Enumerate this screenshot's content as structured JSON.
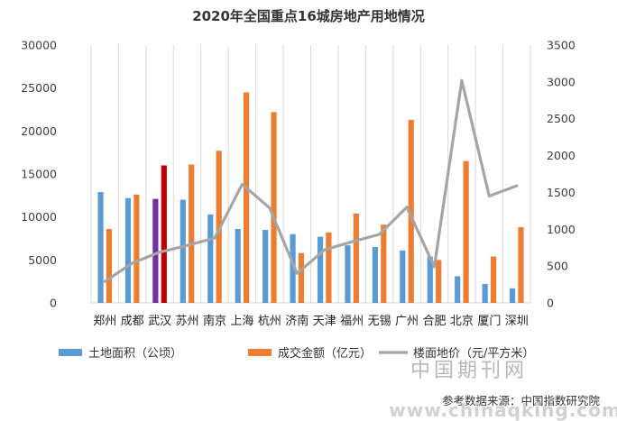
{
  "chart_data": {
    "type": "bar",
    "title": "2020年全国重点16城房地产用地情况",
    "categories": [
      "郑州",
      "成都",
      "武汉",
      "苏州",
      "南京",
      "上海",
      "杭州",
      "济南",
      "天津",
      "福州",
      "无锡",
      "广州",
      "合肥",
      "北京",
      "厦门",
      "深圳"
    ],
    "series": [
      {
        "name": "土地面积（公顷）",
        "type": "bar",
        "axis": "left",
        "color": "#5b9bd5",
        "values": [
          12900,
          12200,
          12100,
          12000,
          10300,
          8600,
          8500,
          8000,
          7700,
          6700,
          6500,
          6100,
          5400,
          3100,
          2200,
          1700
        ],
        "highlight": {
          "index": 2,
          "color": "#7030a0"
        }
      },
      {
        "name": "成交金额（亿元）",
        "type": "bar",
        "axis": "left",
        "color": "#ed7d31",
        "values": [
          8600,
          12600,
          16000,
          16100,
          17700,
          24500,
          22200,
          5800,
          8200,
          10400,
          9100,
          21300,
          5000,
          16500,
          5400,
          8800
        ],
        "highlight": {
          "index": 2,
          "color": "#c00000"
        }
      },
      {
        "name": "楼面地价（元/平方米）",
        "type": "line",
        "axis": "right",
        "color": "#a5a5a5",
        "values": [
          290,
          540,
          690,
          780,
          880,
          1610,
          1290,
          400,
          720,
          830,
          930,
          1300,
          490,
          3020,
          1450,
          1590
        ]
      }
    ],
    "y_left": {
      "min": 0,
      "max": 30000,
      "ticks": [
        "0",
        "5000",
        "10000",
        "15000",
        "20000",
        "25000",
        "30000"
      ]
    },
    "y_right": {
      "min": 0,
      "max": 3500,
      "ticks": [
        "0",
        "500",
        "1000",
        "1500",
        "2000",
        "2500",
        "3000",
        "3500"
      ]
    },
    "grid": "vertical",
    "legend": "bottom"
  },
  "source": "参考数据来源：中国指数研究院",
  "watermark": {
    "cn": "中国期刊网",
    "en": "www.chinaqking.com"
  }
}
